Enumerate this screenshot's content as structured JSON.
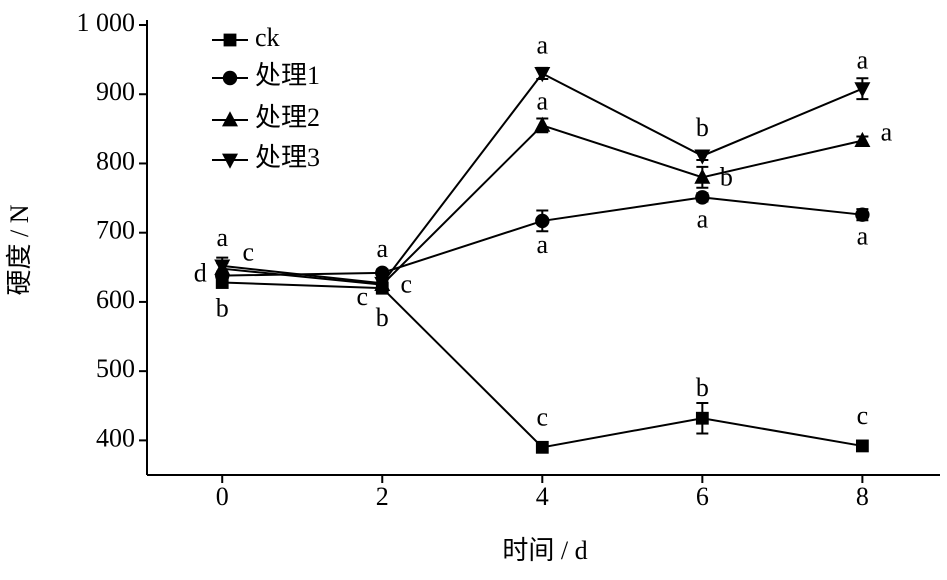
{
  "chart_data": {
    "type": "line",
    "xlabel": "时间 / d",
    "ylabel": "硬度 / N",
    "x": [
      0,
      2,
      4,
      6,
      8
    ],
    "xlim": [
      -0.94,
      8.97
    ],
    "xticks": [
      0,
      2,
      4,
      6,
      8
    ],
    "ylim": [
      350,
      1000
    ],
    "yticks": [
      400,
      500,
      600,
      700,
      800,
      900,
      {
        "value": 1000,
        "label": "1 000"
      }
    ],
    "series": [
      {
        "name": "ck",
        "color": "#000000",
        "marker": "square",
        "values": [
          628,
          620,
          390,
          432,
          392
        ],
        "errors": [
          6,
          8,
          5,
          22,
          5
        ],
        "letters": [
          "b",
          "b",
          "c",
          "b",
          "c"
        ]
      },
      {
        "name": "处理1",
        "color": "#000000",
        "marker": "circle",
        "values": [
          638,
          642,
          717,
          751,
          726
        ],
        "errors": [
          6,
          5,
          15,
          6,
          8
        ],
        "letters": [
          "d",
          "a",
          "a",
          "a",
          "a"
        ]
      },
      {
        "name": "处理2",
        "color": "#000000",
        "marker": "triangle-up",
        "values": [
          648,
          625,
          855,
          780,
          833
        ],
        "errors": [
          8,
          6,
          10,
          15,
          6
        ],
        "letters": [
          "c",
          "c",
          "a",
          "b",
          "a"
        ]
      },
      {
        "name": "处理3",
        "color": "#000000",
        "marker": "triangle-down",
        "values": [
          652,
          627,
          930,
          811,
          908
        ],
        "errors": [
          12,
          6,
          8,
          6,
          15
        ],
        "letters": [
          "a",
          "c",
          "a",
          "b",
          "a"
        ]
      }
    ],
    "legend": "upper left"
  }
}
